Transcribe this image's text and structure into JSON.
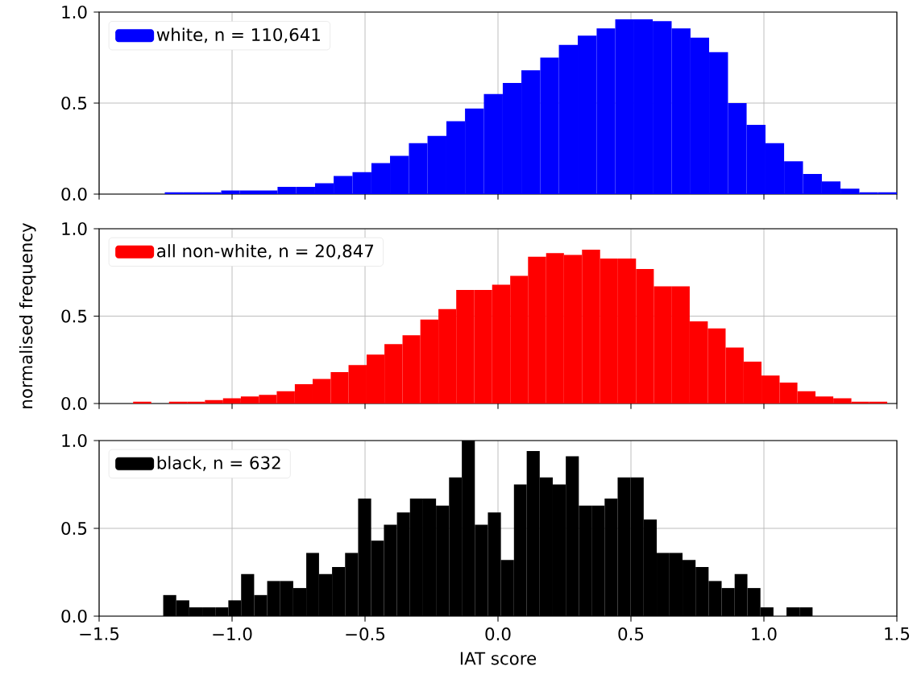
{
  "chart_data": [
    {
      "type": "histogram",
      "bins": [
        -1.253,
        -1.182,
        -1.112,
        -1.041,
        -0.971,
        -0.9,
        -0.829,
        -0.759,
        -0.688,
        -0.618,
        -0.547,
        -0.476,
        -0.406,
        -0.335,
        -0.265,
        -0.194,
        -0.124,
        -0.053,
        0.018,
        0.088,
        0.159,
        0.229,
        0.3,
        0.371,
        0.441,
        0.512,
        0.582,
        0.653,
        0.724,
        0.794,
        0.865,
        0.935,
        1.006,
        1.076,
        1.147,
        1.218,
        1.288,
        1.359,
        1.429,
        1.5
      ],
      "series": [
        {
          "name": "white, n = 110,641",
          "color": "#0000ff",
          "values": [
            0.01,
            0.01,
            0.01,
            0.02,
            0.02,
            0.02,
            0.04,
            0.04,
            0.06,
            0.1,
            0.12,
            0.17,
            0.21,
            0.28,
            0.32,
            0.4,
            0.47,
            0.55,
            0.61,
            0.68,
            0.75,
            0.82,
            0.87,
            0.91,
            0.96,
            0.96,
            0.95,
            0.91,
            0.86,
            0.78,
            0.5,
            0.38,
            0.28,
            0.18,
            0.11,
            0.07,
            0.03,
            0.01,
            0.01
          ]
        }
      ],
      "xlim": [
        -1.5,
        1.5
      ],
      "xticks": [
        -1.5,
        -1.0,
        -0.5,
        0,
        0.5,
        1.0,
        1.5
      ],
      "ylim": [
        0,
        1
      ],
      "yticks": [
        {
          "value": 0,
          "label": "0.0"
        },
        {
          "value": 0.5,
          "label": "0.5"
        },
        {
          "value": 1.0,
          "label": "1.0"
        }
      ],
      "grid": true,
      "legend": "top left",
      "tick_labels": "y"
    },
    {
      "type": "histogram",
      "ylabel": "normalised frequency",
      "bins": [
        -1.372,
        -1.304,
        -1.237,
        -1.169,
        -1.102,
        -1.034,
        -0.967,
        -0.899,
        -0.832,
        -0.764,
        -0.697,
        -0.629,
        -0.562,
        -0.494,
        -0.427,
        -0.359,
        -0.292,
        -0.224,
        -0.157,
        -0.089,
        -0.022,
        0.046,
        0.113,
        0.181,
        0.248,
        0.316,
        0.384,
        0.451,
        0.519,
        0.586,
        0.654,
        0.721,
        0.789,
        0.856,
        0.924,
        0.991,
        1.059,
        1.126,
        1.194,
        1.261,
        1.329,
        1.396,
        1.464
      ],
      "series": [
        {
          "name": "all non-white, n = 20,847",
          "color": "#ff0000",
          "values": [
            0.01,
            0,
            0.01,
            0.01,
            0.02,
            0.03,
            0.04,
            0.05,
            0.07,
            0.11,
            0.14,
            0.18,
            0.22,
            0.28,
            0.34,
            0.39,
            0.48,
            0.54,
            0.65,
            0.65,
            0.68,
            0.73,
            0.84,
            0.86,
            0.85,
            0.88,
            0.83,
            0.83,
            0.77,
            0.67,
            0.67,
            0.47,
            0.43,
            0.32,
            0.24,
            0.16,
            0.12,
            0.07,
            0.04,
            0.03,
            0.01,
            0.01
          ]
        }
      ],
      "xlim": [
        -1.5,
        1.5
      ],
      "xticks": [
        -1.5,
        -1.0,
        -0.5,
        0,
        0.5,
        1.0,
        1.5
      ],
      "ylim": [
        0,
        1
      ],
      "yticks": [
        {
          "value": 0,
          "label": "0.0"
        },
        {
          "value": 0.5,
          "label": "0.5"
        },
        {
          "value": 1.0,
          "label": "1.0"
        }
      ],
      "grid": true,
      "legend": "top left",
      "tick_labels": "y"
    },
    {
      "type": "histogram",
      "xlabel": "IAT score",
      "bins": [
        -1.259,
        -1.21,
        -1.161,
        -1.112,
        -1.063,
        -1.014,
        -0.966,
        -0.917,
        -0.868,
        -0.819,
        -0.77,
        -0.721,
        -0.673,
        -0.624,
        -0.575,
        -0.526,
        -0.477,
        -0.429,
        -0.38,
        -0.331,
        -0.282,
        -0.233,
        -0.184,
        -0.136,
        -0.087,
        -0.038,
        0.011,
        0.06,
        0.108,
        0.157,
        0.206,
        0.255,
        0.304,
        0.352,
        0.401,
        0.45,
        0.499,
        0.548,
        0.597,
        0.645,
        0.694,
        0.743,
        0.792,
        0.841,
        0.89,
        0.938,
        0.987,
        1.036,
        1.085,
        1.134,
        1.183
      ],
      "series": [
        {
          "name": "black, n = 632",
          "color": "#000000",
          "values": [
            0.12,
            0.09,
            0.05,
            0.05,
            0.05,
            0.09,
            0.24,
            0.12,
            0.2,
            0.2,
            0.16,
            0.36,
            0.24,
            0.28,
            0.36,
            0.67,
            0.43,
            0.52,
            0.59,
            0.67,
            0.67,
            0.63,
            0.79,
            1.0,
            0.52,
            0.59,
            0.32,
            0.75,
            0.94,
            0.79,
            0.75,
            0.91,
            0.63,
            0.63,
            0.67,
            0.79,
            0.79,
            0.55,
            0.36,
            0.36,
            0.32,
            0.28,
            0.2,
            0.16,
            0.24,
            0.16,
            0.05,
            0,
            0.05,
            0.05
          ]
        }
      ],
      "xlim": [
        -1.5,
        1.5
      ],
      "xticks": [
        {
          "value": -1.5,
          "label": "−1.5"
        },
        {
          "value": -1.0,
          "label": "−1.0"
        },
        {
          "value": -0.5,
          "label": "−0.5"
        },
        {
          "value": 0,
          "label": "0.0"
        },
        {
          "value": 0.5,
          "label": "0.5"
        },
        {
          "value": 1.0,
          "label": "1.0"
        },
        {
          "value": 1.5,
          "label": "1.5"
        }
      ],
      "ylim": [
        0,
        1
      ],
      "yticks": [
        {
          "value": 0,
          "label": "0.0"
        },
        {
          "value": 0.5,
          "label": "0.5"
        },
        {
          "value": 1.0,
          "label": "1.0"
        }
      ],
      "grid": true,
      "legend": "top left"
    }
  ]
}
